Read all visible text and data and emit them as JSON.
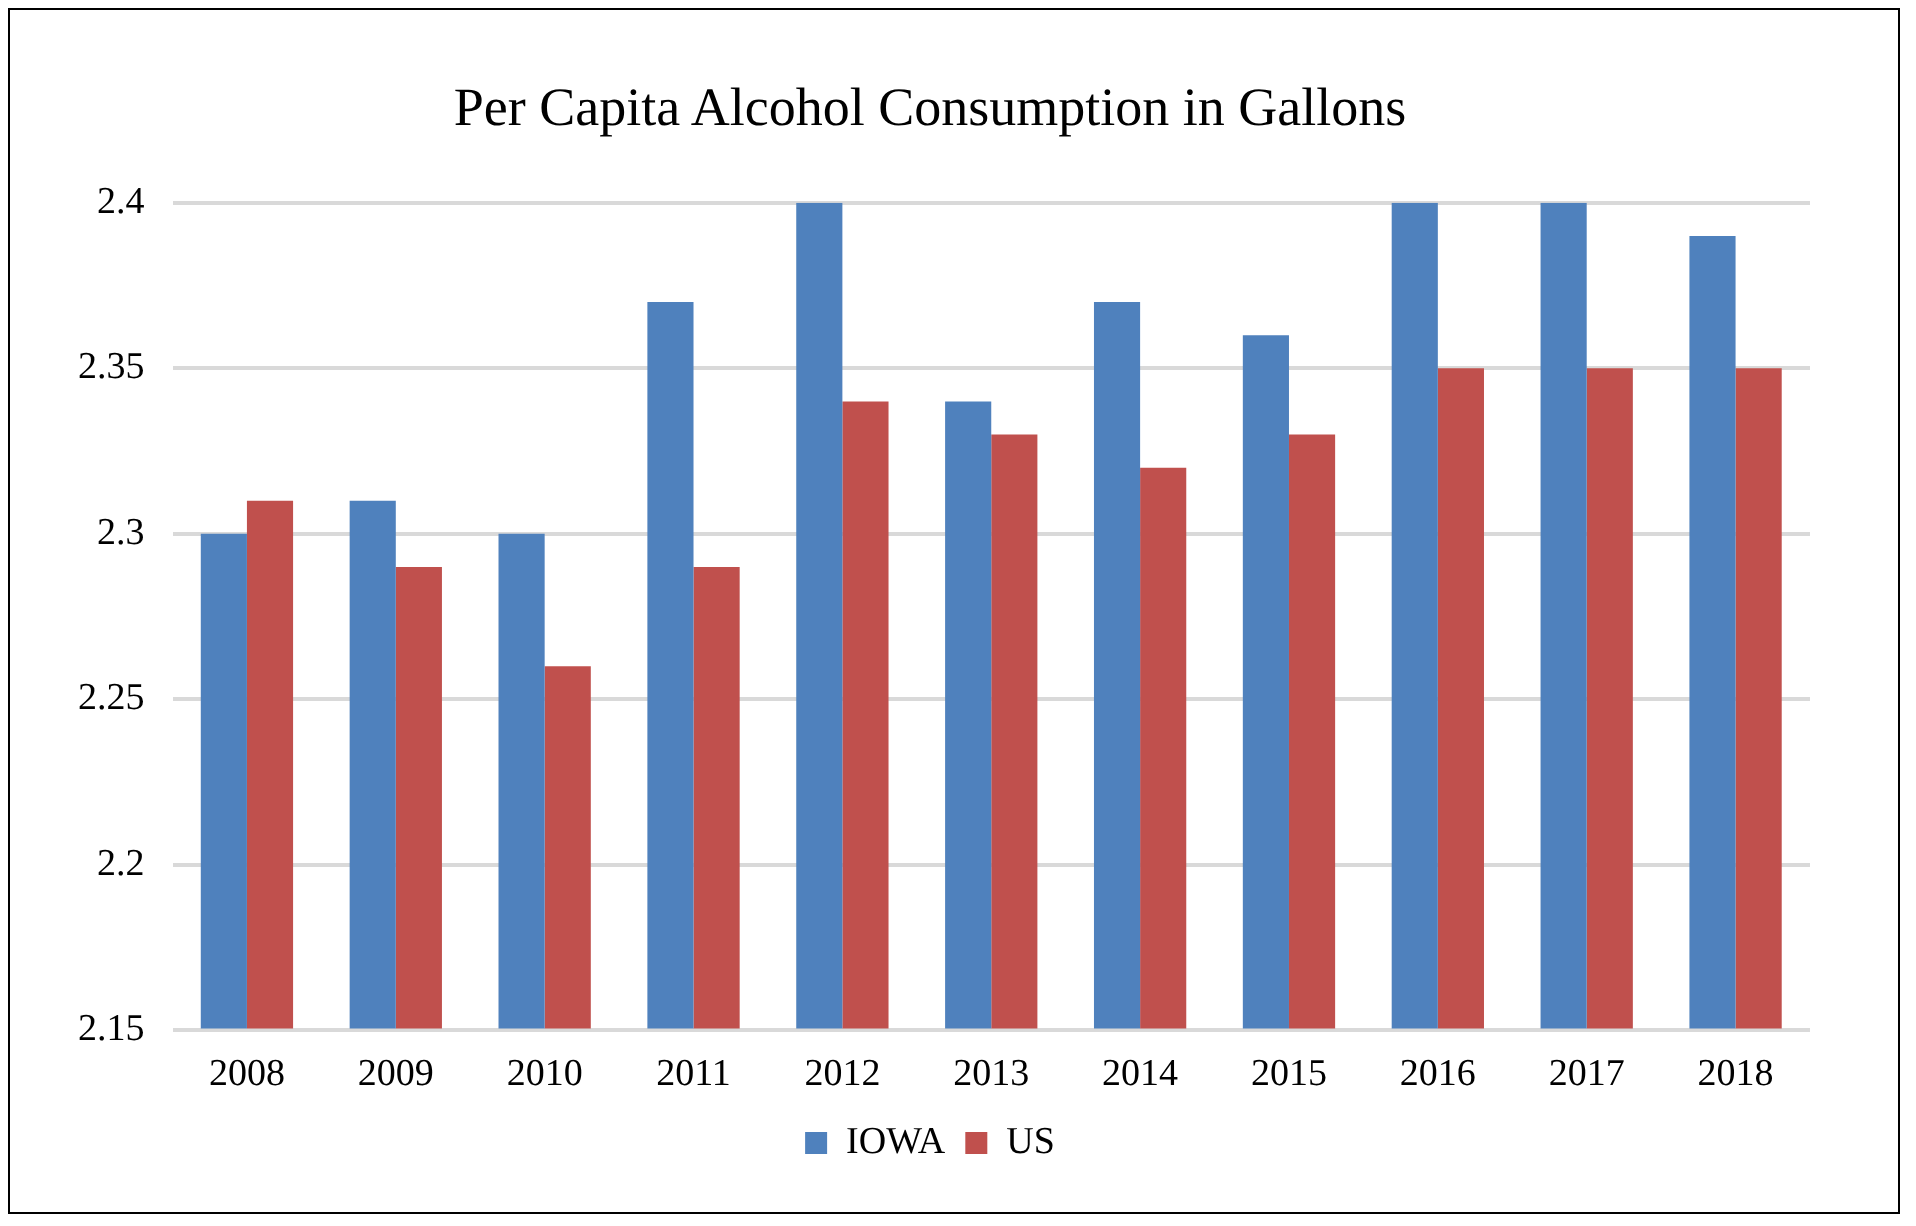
{
  "chart_data": {
    "type": "bar",
    "title": "Per Capita Alcohol Consumption in Gallons",
    "categories": [
      "2008",
      "2009",
      "2010",
      "2011",
      "2012",
      "2013",
      "2014",
      "2015",
      "2016",
      "2017",
      "2018"
    ],
    "series": [
      {
        "name": "IOWA",
        "color": "#4f81bd",
        "values": [
          2.3,
          2.31,
          2.3,
          2.37,
          2.4,
          2.34,
          2.37,
          2.36,
          2.4,
          2.4,
          2.39
        ]
      },
      {
        "name": "US",
        "color": "#c0504d",
        "values": [
          2.31,
          2.29,
          2.26,
          2.29,
          2.34,
          2.33,
          2.32,
          2.33,
          2.35,
          2.35,
          2.35
        ]
      }
    ],
    "ylim": [
      2.15,
      2.4
    ],
    "yticks": [
      2.15,
      2.2,
      2.25,
      2.3,
      2.35,
      2.4
    ],
    "grid": "y",
    "legend": "bottom"
  }
}
